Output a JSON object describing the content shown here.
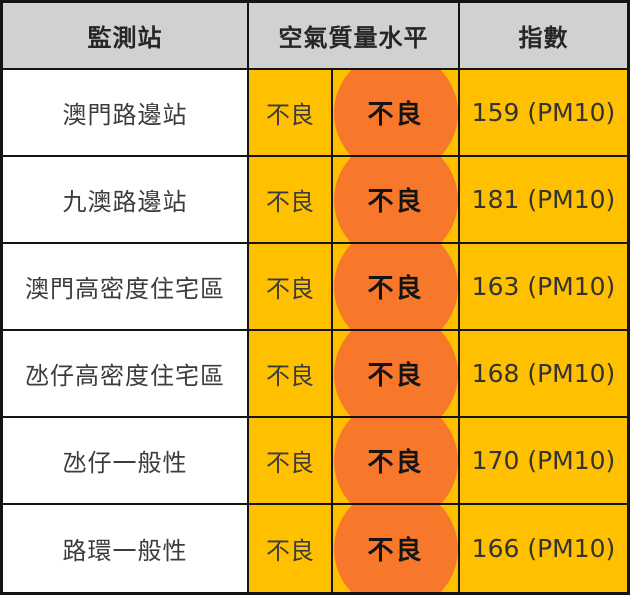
{
  "chart_data": {
    "type": "table",
    "title": "",
    "columns": [
      "監測站",
      "空氣質量水平",
      "指數"
    ],
    "rows": [
      {
        "station": "澳門路邊站",
        "level_text": "不良",
        "level_badge": "不良",
        "index": "159 (PM10)"
      },
      {
        "station": "九澳路邊站",
        "level_text": "不良",
        "level_badge": "不良",
        "index": "181 (PM10)"
      },
      {
        "station": "澳門高密度住宅區",
        "level_text": "不良",
        "level_badge": "不良",
        "index": "163 (PM10)"
      },
      {
        "station": "氹仔高密度住宅區",
        "level_text": "不良",
        "level_badge": "不良",
        "index": "168 (PM10)"
      },
      {
        "station": "氹仔一般性",
        "level_text": "不良",
        "level_badge": "不良",
        "index": "170 (PM10)"
      },
      {
        "station": "路環一般性",
        "level_text": "不良",
        "level_badge": "不良",
        "index": "166 (PM10)"
      }
    ],
    "colors": {
      "header_bg": "#d1d1d1",
      "cell_amber": "#ffc000",
      "badge_orange": "#f8782b",
      "border": "#141414",
      "text_dark": "#3c3c3c"
    }
  }
}
